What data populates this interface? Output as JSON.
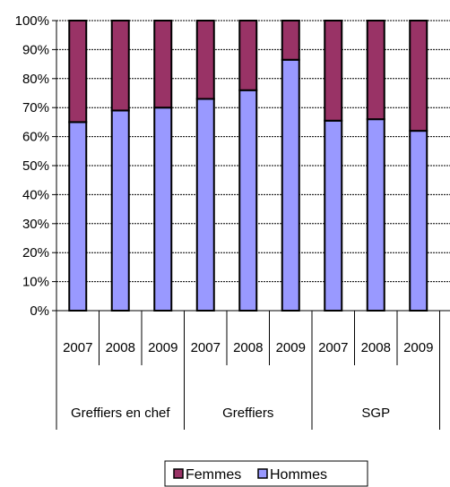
{
  "chart_data": {
    "type": "bar",
    "stacked": true,
    "percent": true,
    "categories": [
      "2007",
      "2008",
      "2009",
      "2007",
      "2008",
      "2009",
      "2007",
      "2008",
      "2009"
    ],
    "groups": [
      {
        "label": "Greffiers en chef",
        "categories": [
          "2007",
          "2008",
          "2009"
        ]
      },
      {
        "label": "Greffiers",
        "categories": [
          "2007",
          "2008",
          "2009"
        ]
      },
      {
        "label": "SGP",
        "categories": [
          "2007",
          "2008",
          "2009"
        ]
      }
    ],
    "series": [
      {
        "name": "Hommes",
        "color": "#9999ff",
        "values": [
          65,
          69,
          70,
          73,
          76,
          86.5,
          65.5,
          66,
          62
        ]
      },
      {
        "name": "Femmes",
        "color": "#993366",
        "values": [
          35,
          31,
          30,
          27,
          24,
          13.5,
          34.5,
          34,
          38
        ]
      }
    ],
    "y_ticks": [
      "0%",
      "10%",
      "20%",
      "30%",
      "40%",
      "50%",
      "60%",
      "70%",
      "80%",
      "90%",
      "100%"
    ],
    "ylim": [
      0,
      100
    ],
    "grid": true,
    "legend": {
      "position": "bottom",
      "order": [
        "Femmes",
        "Hommes"
      ]
    }
  }
}
